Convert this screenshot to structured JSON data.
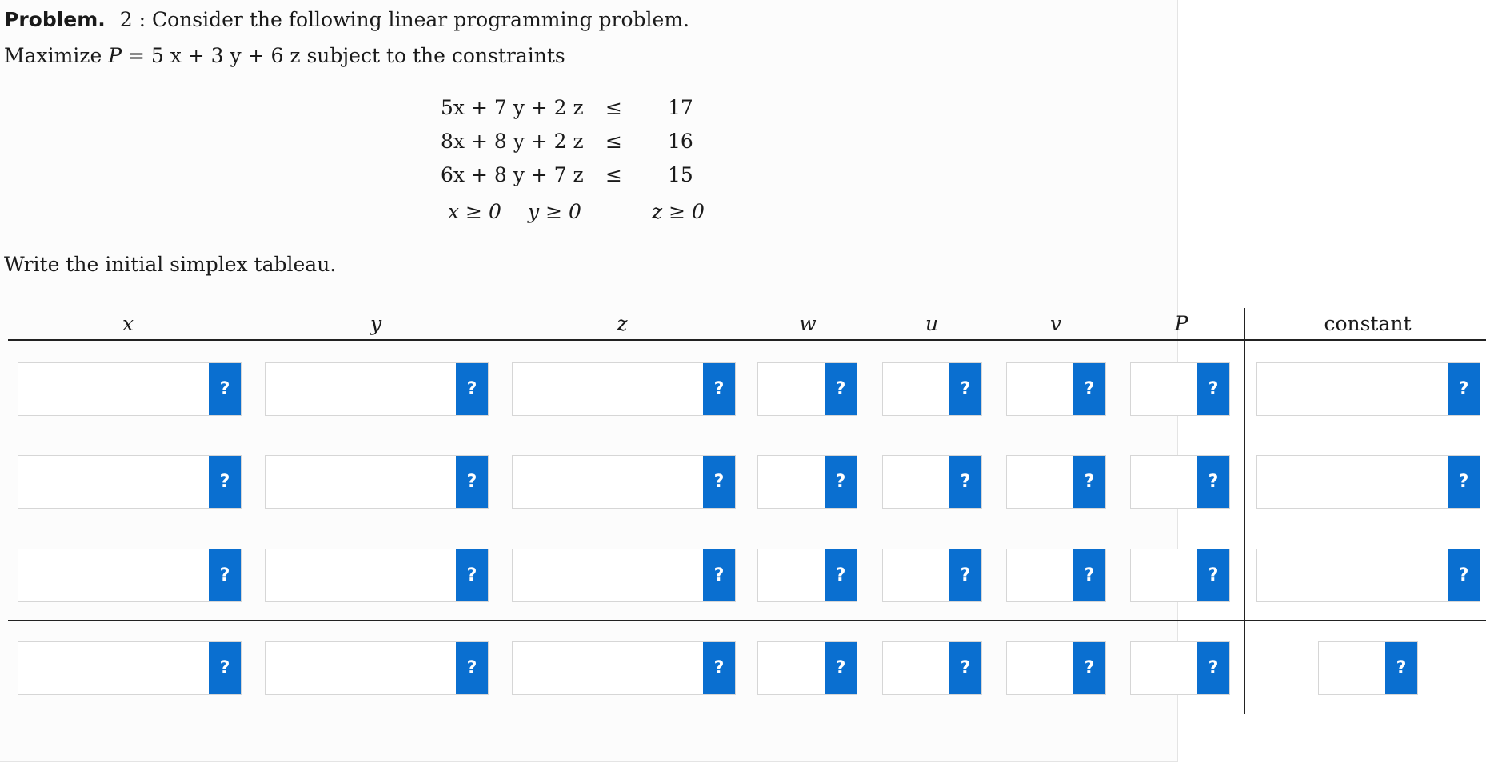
{
  "problem": {
    "label": "Problem.",
    "number": "2 :",
    "statement": "Consider the following linear programming problem."
  },
  "objective": {
    "prefix": "Maximize ",
    "var": "P",
    "expression": " = 5 x + 3 y + 6 z",
    "suffix": " subject to the constraints"
  },
  "constraints": [
    {
      "lhs": "5x + 7 y + 2 z",
      "op": "≤",
      "rhs": "17"
    },
    {
      "lhs": "8x + 8 y + 2 z",
      "op": "≤",
      "rhs": "16"
    },
    {
      "lhs": "6x + 8 y + 7 z",
      "op": "≤",
      "rhs": "15"
    }
  ],
  "nonnegativity": [
    "x ≥ 0",
    "y ≥ 0",
    "z ≥ 0"
  ],
  "prompt": "Write the initial simplex tableau.",
  "tableau": {
    "columns": [
      "x",
      "y",
      "z",
      "w",
      "u",
      "v",
      "P",
      "constant"
    ],
    "help_label": "?",
    "rows": [
      [
        "",
        "",
        "",
        "",
        "",
        "",
        "",
        ""
      ],
      [
        "",
        "",
        "",
        "",
        "",
        "",
        "",
        ""
      ],
      [
        "",
        "",
        "",
        "",
        "",
        "",
        "",
        ""
      ],
      [
        "",
        "",
        "",
        "",
        "",
        "",
        "",
        ""
      ]
    ]
  },
  "colors": {
    "help_button": "#0a6fd0"
  }
}
